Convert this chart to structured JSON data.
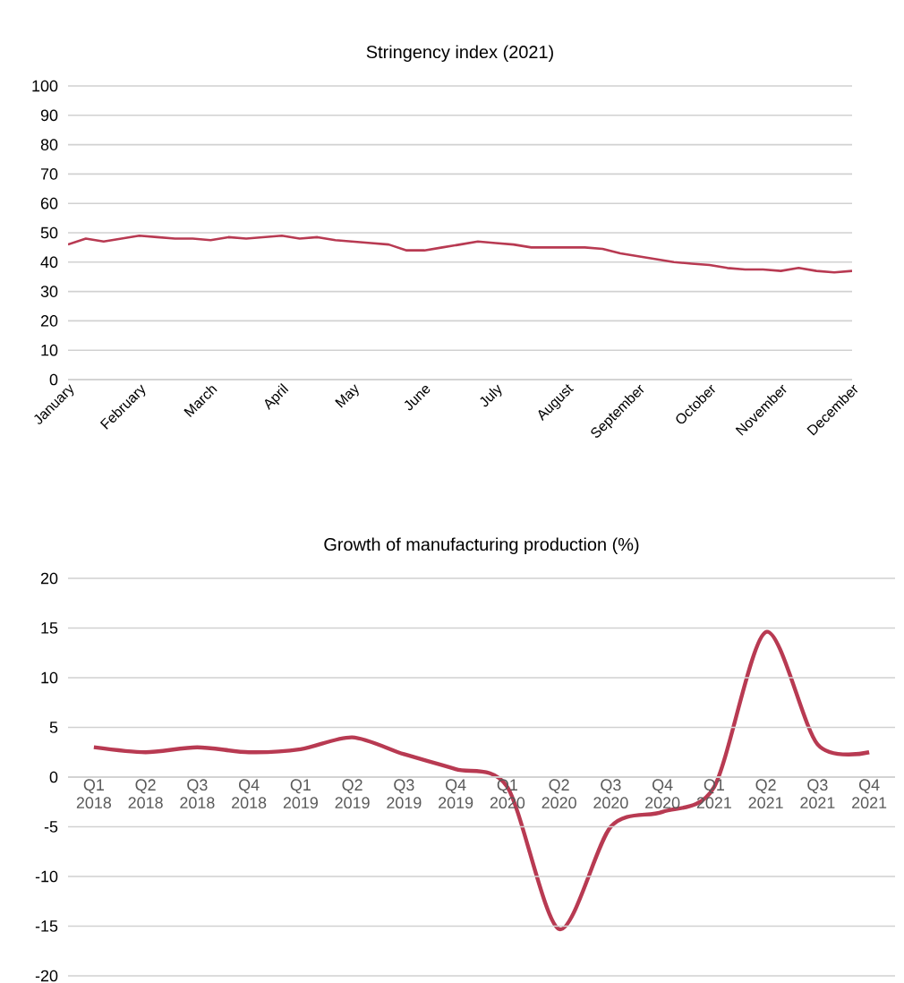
{
  "chart_data": [
    {
      "type": "line",
      "title": "Stringency index (2021)",
      "categories": [
        "January",
        null,
        null,
        null,
        "February",
        null,
        null,
        null,
        "March",
        null,
        null,
        null,
        "April",
        null,
        null,
        null,
        "May",
        null,
        null,
        null,
        "June",
        null,
        null,
        null,
        "July",
        null,
        null,
        null,
        "August",
        null,
        null,
        null,
        "September",
        null,
        null,
        null,
        "October",
        null,
        null,
        null,
        "November",
        null,
        null,
        null,
        "December"
      ],
      "values": [
        46,
        48,
        47,
        48,
        49,
        48.5,
        48,
        48,
        47.5,
        48.5,
        48,
        48.5,
        49,
        48,
        48.5,
        47.5,
        47,
        46.5,
        46,
        44,
        44,
        45,
        46,
        47,
        46.5,
        46,
        45,
        45,
        45,
        45,
        44.5,
        43,
        42,
        41,
        40,
        39.5,
        39,
        38,
        37.5,
        37.5,
        37,
        38,
        37,
        36.5,
        37
      ],
      "color": "#b83a52",
      "ylim": [
        0,
        100
      ],
      "yticks": [
        0,
        10,
        20,
        30,
        40,
        50,
        60,
        70,
        80,
        90,
        100
      ],
      "grid": "y"
    },
    {
      "type": "line",
      "title": "Growth of manufacturing production (%)",
      "categories": [
        "Q1 2018",
        "Q2 2018",
        "Q3 2018",
        "Q4 2018",
        "Q1 2019",
        "Q2 2019",
        "Q3 2019",
        "Q4 2019",
        "Q1 2020",
        "Q2 2020",
        "Q3 2020",
        "Q4 2020",
        "Q1 2021",
        "Q2 2021",
        "Q3 2021",
        "Q4 2021"
      ],
      "values": [
        3,
        2.5,
        3,
        2.5,
        2.8,
        4,
        2.3,
        0.8,
        -1,
        -15.3,
        -5,
        -3.5,
        -1,
        14.6,
        3.3,
        2.5
      ],
      "color": "#b83a52",
      "ylim": [
        -20,
        20
      ],
      "yticks": [
        -20,
        -15,
        -10,
        -5,
        0,
        5,
        10,
        15,
        20
      ],
      "grid": "y"
    }
  ]
}
